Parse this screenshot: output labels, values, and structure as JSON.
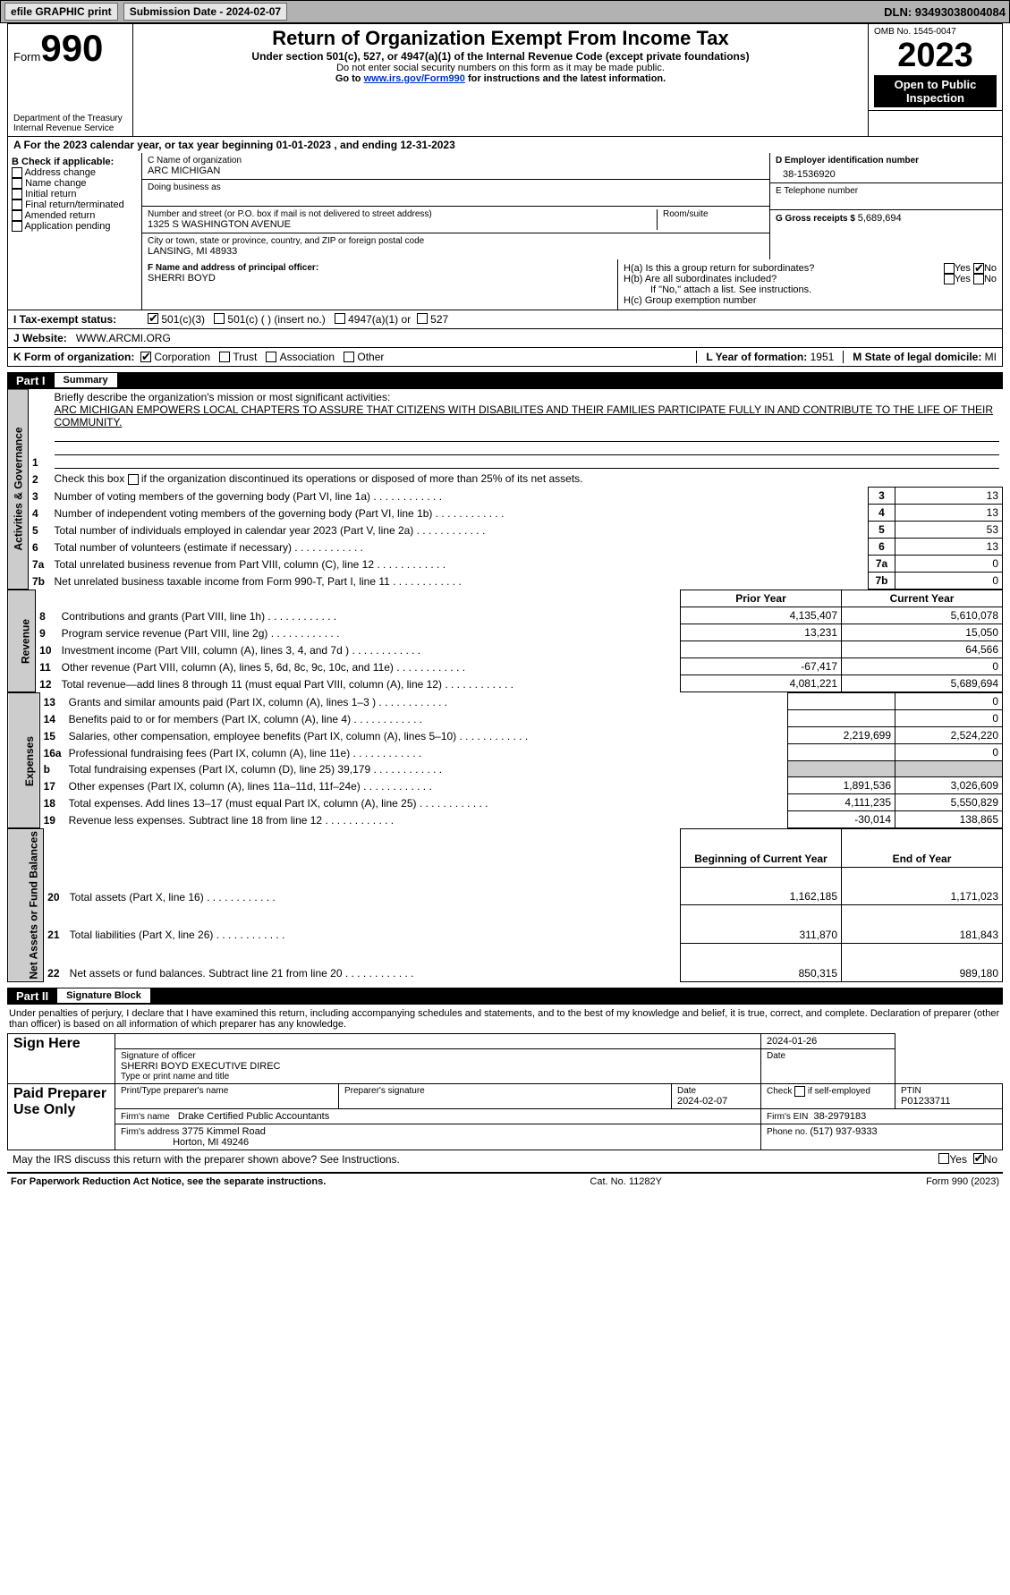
{
  "topbar": {
    "efile": "efile GRAPHIC print",
    "submission": "Submission Date - 2024-02-07",
    "dln": "DLN: 93493038004084"
  },
  "header": {
    "form_label": "Form",
    "form_no": "990",
    "title": "Return of Organization Exempt From Income Tax",
    "subtitle": "Under section 501(c), 527, or 4947(a)(1) of the Internal Revenue Code (except private foundations)",
    "note1": "Do not enter social security numbers on this form as it may be made public.",
    "note2_pre": "Go to ",
    "note2_link": "www.irs.gov/Form990",
    "note2_post": " for instructions and the latest information.",
    "dept": "Department of the Treasury",
    "irs": "Internal Revenue Service",
    "omb": "OMB No. 1545-0047",
    "year": "2023",
    "inspection": "Open to Public Inspection"
  },
  "period": "A    For the 2023 calendar year, or tax year beginning 01-01-2023    , and ending 12-31-2023",
  "boxB": {
    "label": "B Check if applicable:",
    "opts": [
      "Address change",
      "Name change",
      "Initial return",
      "Final return/terminated",
      "Amended return",
      "Application pending"
    ]
  },
  "boxC": {
    "name_label": "C Name of organization",
    "name": "ARC MICHIGAN",
    "dba_label": "Doing business as",
    "street_label": "Number and street (or P.O. box if mail is not delivered to street address)",
    "street": "1325 S WASHINGTON AVENUE",
    "room_label": "Room/suite",
    "city_label": "City or town, state or province, country, and ZIP or foreign postal code",
    "city": "LANSING, MI  48933"
  },
  "boxD": {
    "label": "D Employer identification number",
    "value": "38-1536920"
  },
  "boxE": {
    "label": "E Telephone number"
  },
  "boxG": {
    "label": "G Gross receipts $ ",
    "value": "5,689,694"
  },
  "boxF": {
    "label": "F  Name and address of principal officer:",
    "value": "SHERRI BOYD"
  },
  "boxH": {
    "a_label": "H(a)  Is this a group return for subordinates?",
    "b_label": "H(b)  Are all subordinates included?",
    "b_note": "If \"No,\" attach a list. See instructions.",
    "c_label": "H(c)  Group exemption number",
    "yes": "Yes",
    "no": "No"
  },
  "boxI": {
    "label": "I     Tax-exempt status:",
    "o1": "501(c)(3)",
    "o2": "501(c) (  ) (insert no.)",
    "o3": "4947(a)(1) or",
    "o4": "527"
  },
  "boxJ": {
    "label": "J    Website:",
    "value": "WWW.ARCMI.ORG"
  },
  "boxK": {
    "label": "K Form of organization:",
    "o1": "Corporation",
    "o2": "Trust",
    "o3": "Association",
    "o4": "Other"
  },
  "boxL": {
    "label": "L Year of formation: ",
    "value": "1951"
  },
  "boxM": {
    "label": "M State of legal domicile: ",
    "value": "MI"
  },
  "part1": {
    "part": "Part I",
    "title": "Summary"
  },
  "summary": {
    "l1_label": "Briefly describe the organization's mission or most significant activities:",
    "l1_text": "ARC MICHIGAN EMPOWERS LOCAL CHAPTERS TO ASSURE THAT CITIZENS WITH DISABILITES AND THEIR FAMILIES PARTICIPATE FULLY IN AND CONTRIBUTE TO THE LIFE OF THEIR COMMUNITY.",
    "l2_label": "Check this box        if the organization discontinued its operations or disposed of more than 25% of its net assets.",
    "lines_ag": [
      {
        "n": "3",
        "t": "Number of voting members of the governing body (Part VI, line 1a)",
        "v": "13"
      },
      {
        "n": "4",
        "t": "Number of independent voting members of the governing body (Part VI, line 1b)",
        "v": "13"
      },
      {
        "n": "5",
        "t": "Total number of individuals employed in calendar year 2023 (Part V, line 2a)",
        "v": "53"
      },
      {
        "n": "6",
        "t": "Total number of volunteers (estimate if necessary)",
        "v": "13"
      },
      {
        "n": "7a",
        "t": "Total unrelated business revenue from Part VIII, column (C), line 12",
        "v": "0"
      },
      {
        "n": "7b",
        "t": "Net unrelated business taxable income from Form 990-T, Part I, line 11",
        "v": "0"
      }
    ],
    "prior": "Prior Year",
    "current": "Current Year",
    "rev": [
      {
        "n": "8",
        "t": "Contributions and grants (Part VIII, line 1h)",
        "p": "4,135,407",
        "c": "5,610,078"
      },
      {
        "n": "9",
        "t": "Program service revenue (Part VIII, line 2g)",
        "p": "13,231",
        "c": "15,050"
      },
      {
        "n": "10",
        "t": "Investment income (Part VIII, column (A), lines 3, 4, and 7d )",
        "p": "",
        "c": "64,566"
      },
      {
        "n": "11",
        "t": "Other revenue (Part VIII, column (A), lines 5, 6d, 8c, 9c, 10c, and 11e)",
        "p": "-67,417",
        "c": "0"
      },
      {
        "n": "12",
        "t": "Total revenue—add lines 8 through 11 (must equal Part VIII, column (A), line 12)",
        "p": "4,081,221",
        "c": "5,689,694"
      }
    ],
    "exp": [
      {
        "n": "13",
        "t": "Grants and similar amounts paid (Part IX, column (A), lines 1–3 )",
        "p": "",
        "c": "0"
      },
      {
        "n": "14",
        "t": "Benefits paid to or for members (Part IX, column (A), line 4)",
        "p": "",
        "c": "0"
      },
      {
        "n": "15",
        "t": "Salaries, other compensation, employee benefits (Part IX, column (A), lines 5–10)",
        "p": "2,219,699",
        "c": "2,524,220"
      },
      {
        "n": "16a",
        "t": "Professional fundraising fees (Part IX, column (A), line 11e)",
        "p": "",
        "c": "0"
      },
      {
        "n": "b",
        "t": "Total fundraising expenses (Part IX, column (D), line 25) 39,179",
        "p": "GREY",
        "c": "GREY"
      },
      {
        "n": "17",
        "t": "Other expenses (Part IX, column (A), lines 11a–11d, 11f–24e)",
        "p": "1,891,536",
        "c": "3,026,609"
      },
      {
        "n": "18",
        "t": "Total expenses. Add lines 13–17 (must equal Part IX, column (A), line 25)",
        "p": "4,111,235",
        "c": "5,550,829"
      },
      {
        "n": "19",
        "t": "Revenue less expenses. Subtract line 18 from line 12",
        "p": "-30,014",
        "c": "138,865"
      }
    ],
    "boy": "Beginning of Current Year",
    "eoy": "End of Year",
    "net": [
      {
        "n": "20",
        "t": "Total assets (Part X, line 16)",
        "p": "1,162,185",
        "c": "1,171,023"
      },
      {
        "n": "21",
        "t": "Total liabilities (Part X, line 26)",
        "p": "311,870",
        "c": "181,843"
      },
      {
        "n": "22",
        "t": "Net assets or fund balances. Subtract line 21 from line 20",
        "p": "850,315",
        "c": "989,180"
      }
    ],
    "vlabels": {
      "ag": "Activities & Governance",
      "rev": "Revenue",
      "exp": "Expenses",
      "net": "Net Assets or Fund Balances"
    }
  },
  "part2": {
    "part": "Part II",
    "title": "Signature Block"
  },
  "sig": {
    "declaration": "Under penalties of perjury, I declare that I have examined this return, including accompanying schedules and statements, and to the best of my knowledge and belief, it is true, correct, and complete. Declaration of preparer (other than officer) is based on all information of which preparer has any knowledge.",
    "sign_here": "Sign Here",
    "sig_date": "2024-01-26",
    "sig_officer_label": "Signature of officer",
    "sig_officer": "SHERRI BOYD  EXECUTIVE DIREC",
    "type_label": "Type or print name and title",
    "date_label": "Date",
    "paid": "Paid Preparer Use Only",
    "pt_name_label": "Print/Type preparer's name",
    "pt_sig_label": "Preparer's signature",
    "pt_date_label": "Date",
    "pt_date": "2024-02-07",
    "pt_check_label": "Check        if self-employed",
    "ptin_label": "PTIN",
    "ptin": "P01233711",
    "firm_name_label": "Firm's name",
    "firm_name": "Drake Certified Public Accountants",
    "firm_ein_label": "Firm's EIN",
    "firm_ein": "38-2979183",
    "firm_addr_label": "Firm's address",
    "firm_addr1": "3775 Kimmel Road",
    "firm_addr2": "Horton, MI  49246",
    "phone_label": "Phone no. ",
    "phone": "(517) 937-9333",
    "may_irs": "May the IRS discuss this return with the preparer shown above? See Instructions."
  },
  "footer": {
    "left": "For Paperwork Reduction Act Notice, see the separate instructions.",
    "mid": "Cat. No. 11282Y",
    "right": "Form 990 (2023)"
  }
}
